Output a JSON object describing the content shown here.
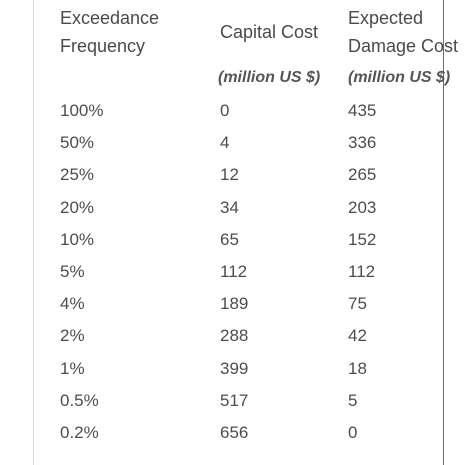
{
  "table": {
    "headers": {
      "col1_line1": "Exceedance",
      "col1_line2": "Frequency",
      "col2": "Capital Cost",
      "col3_line1": "Expected",
      "col3_line2": "Damage Cost",
      "col2_unit": "(million US $)",
      "col3_unit": "(million US $)"
    },
    "rows": [
      [
        "100%",
        "0",
        "435"
      ],
      [
        "50%",
        "4",
        "336"
      ],
      [
        "25%",
        "12",
        "265"
      ],
      [
        "20%",
        "34",
        "203"
      ],
      [
        "10%",
        "65",
        "152"
      ],
      [
        "5%",
        "112",
        "112"
      ],
      [
        "4%",
        "189",
        "75"
      ],
      [
        "2%",
        "288",
        "42"
      ],
      [
        "1%",
        "399",
        "18"
      ],
      [
        "0.5%",
        "517",
        "5"
      ],
      [
        "0.2%",
        "656",
        "0"
      ]
    ]
  }
}
